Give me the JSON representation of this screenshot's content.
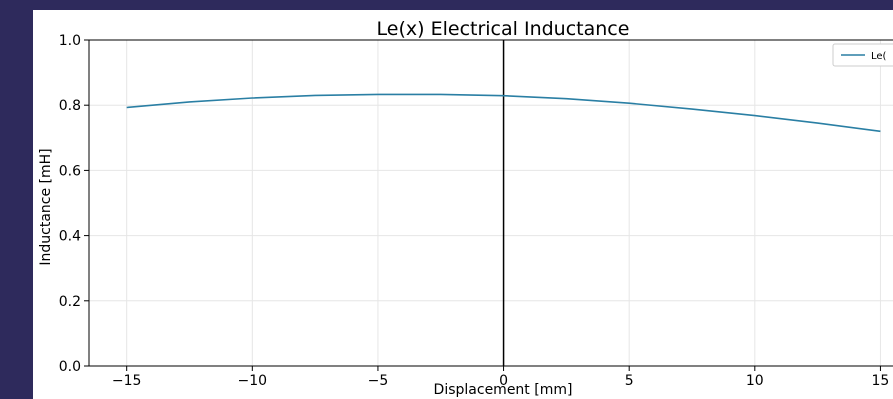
{
  "chart_data": {
    "type": "line",
    "title": "Le(x) Electrical Inductance",
    "xlabel": "Displacement [mm]",
    "ylabel": "Inductance [mH]",
    "xlim": [
      -16.5,
      15.5
    ],
    "ylim": [
      0.0,
      1.0
    ],
    "grid": true,
    "legend_position": "top-right",
    "x_ticks": [
      -15,
      -10,
      -5,
      0,
      5,
      10,
      15
    ],
    "x_tick_labels": [
      "−15",
      "−10",
      "−5",
      "0",
      "5",
      "10",
      "15"
    ],
    "y_ticks": [
      0.0,
      0.2,
      0.4,
      0.6,
      0.8,
      1.0
    ],
    "y_tick_labels": [
      "0.0",
      "0.2",
      "0.4",
      "0.6",
      "0.8",
      "1.0"
    ],
    "vertical_line_x": 0,
    "series": [
      {
        "name": "Le(",
        "color": "#2a7fa4",
        "x": [
          -15,
          -12.5,
          -10,
          -7.5,
          -5,
          -2.5,
          0,
          2.5,
          5,
          7.5,
          10,
          12.5,
          15
        ],
        "values": [
          0.793,
          0.81,
          0.822,
          0.83,
          0.833,
          0.833,
          0.829,
          0.82,
          0.806,
          0.788,
          0.768,
          0.745,
          0.72
        ]
      }
    ]
  }
}
